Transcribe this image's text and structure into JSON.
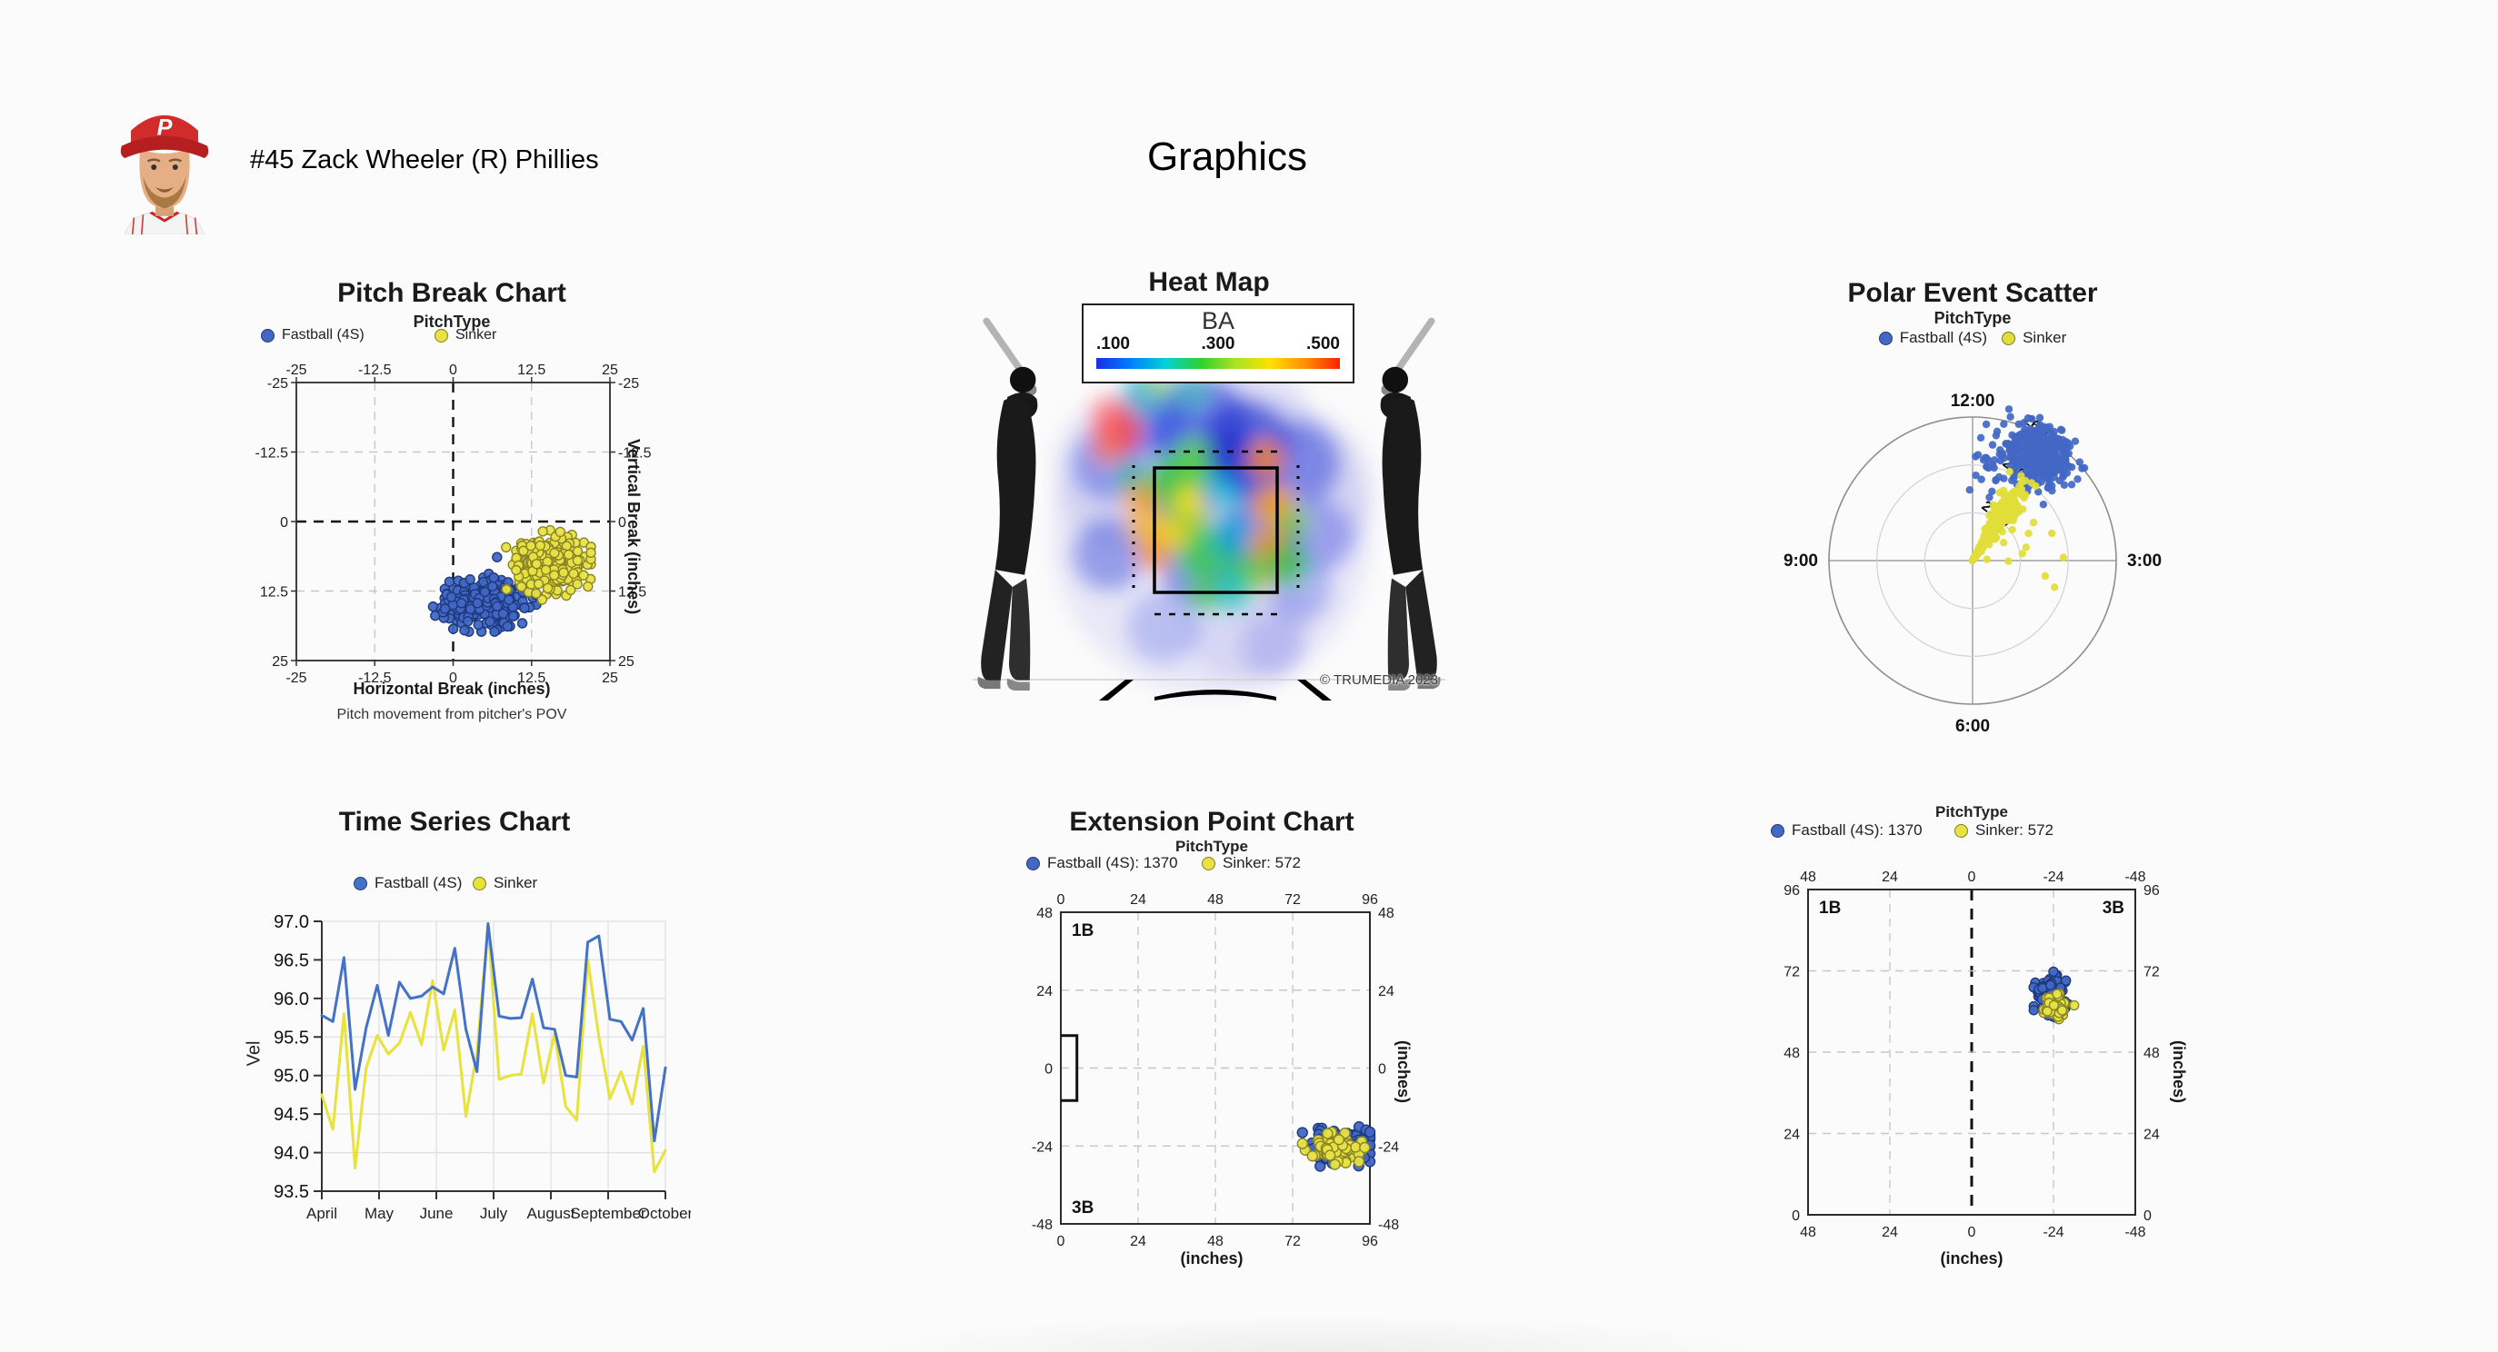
{
  "header": {
    "player_line": "#45 Zack Wheeler (R) Phillies",
    "page_title": "Graphics"
  },
  "colors": {
    "fastball_fill": "#4267c4",
    "fastball_stroke": "#1e3a7e",
    "sinker_fill": "#e8e345",
    "sinker_stroke": "#8a8426"
  },
  "chart_data": [
    {
      "id": "pitch_break",
      "type": "scatter",
      "title": "Pitch Break Chart",
      "legend_title": "PitchType",
      "series": [
        {
          "name": "Fastball (4S)",
          "color": "#4267c4",
          "stroke": "#1e3a7e"
        },
        {
          "name": "Sinker",
          "color": "#e8e345",
          "stroke": "#8a8426"
        }
      ],
      "xlabel": "Horizontal Break (inches)",
      "footnote": "Pitch movement from pitcher's POV",
      "ylabel_right": "Vertical Break (inches)",
      "xlim": [
        -25,
        25
      ],
      "ylim": [
        -25,
        25
      ],
      "xticks": [
        -25,
        -12.5,
        0,
        12.5,
        25
      ],
      "yticks": [
        25,
        12.5,
        0,
        -12.5,
        -25
      ],
      "clusters": [
        {
          "series": 0,
          "cx": 5.2,
          "cy": 14.6,
          "sx": 3.1,
          "sy": 2.0,
          "n": 330
        },
        {
          "series": 1,
          "cx": 15.2,
          "cy": 7.8,
          "sx": 2.6,
          "sy": 2.4,
          "n": 270
        }
      ],
      "extra_points": [
        {
          "series": 0,
          "x": -3.2,
          "y": 15.3
        },
        {
          "series": 0,
          "x": 7.0,
          "y": 6.4
        }
      ]
    },
    {
      "id": "heat_map",
      "type": "heatmap",
      "title": "Heat Map",
      "metric": "BA",
      "scale_labels": [
        ".100",
        ".300",
        ".500"
      ],
      "scale_colors": [
        "#1b2be8",
        "#0080ff",
        "#00d4d0",
        "#2fd02f",
        "#a8e421",
        "#ffe000",
        "#ff9000",
        "#ff2000"
      ],
      "watermark": "© TRUMEDIA 2023"
    },
    {
      "id": "polar",
      "type": "polar_scatter",
      "title": "Polar Event Scatter",
      "legend_title": "PitchType",
      "series": [
        {
          "name": "Fastball (4S)",
          "color": "#4267c4"
        },
        {
          "name": "Sinker",
          "color": "#e2dd3a"
        }
      ],
      "clock_labels": {
        "top": "12:00",
        "right": "3:00",
        "bottom": "6:00",
        "left": "9:00"
      },
      "rings": [
        2200,
        2400,
        2600
      ],
      "center_value": 2000,
      "clusters": [
        {
          "series": 0,
          "angle": 33,
          "angle_sd": 7.5,
          "r": 2525,
          "r_sd": 60,
          "n": 430
        },
        {
          "series": 0,
          "angle": 13,
          "angle_sd": 8,
          "r": 2430,
          "r_sd": 85,
          "n": 40
        },
        {
          "series": 1,
          "angle": 33,
          "angle_sd": 5,
          "r": 2200,
          "r_sd": 80,
          "n": 300
        },
        {
          "series": 1,
          "angle": 33,
          "angle_sd": 3,
          "r": 2060,
          "r_sd": 40,
          "n": 70
        }
      ],
      "extra_points": [
        {
          "series": 1,
          "angle": 0,
          "r": 2000
        },
        {
          "series": 1,
          "angle": 52,
          "r": 2210
        },
        {
          "series": 1,
          "angle": 58,
          "r": 2300
        },
        {
          "series": 1,
          "angle": 64,
          "r": 2260
        },
        {
          "series": 1,
          "angle": 71,
          "r": 2350
        },
        {
          "series": 1,
          "angle": 76,
          "r": 2230
        },
        {
          "series": 1,
          "angle": 82,
          "r": 2210
        },
        {
          "series": 1,
          "angle": 88,
          "r": 2380
        },
        {
          "series": 1,
          "angle": 91,
          "r": 2150
        },
        {
          "series": 1,
          "angle": 102,
          "r": 2310
        },
        {
          "series": 1,
          "angle": 108,
          "r": 2360
        },
        {
          "series": 1,
          "angle": 85,
          "r": 2060
        },
        {
          "series": 1,
          "angle": 60,
          "r": 2150
        }
      ]
    },
    {
      "id": "time_series",
      "type": "line",
      "title": "Time Series Chart",
      "ylabel": "Vel",
      "x_tick_labels": [
        "April",
        "May",
        "June",
        "July",
        "August",
        "September",
        "October"
      ],
      "ylim": [
        93.5,
        97.0
      ],
      "yticks": [
        "97.0",
        "96.5",
        "96.0",
        "95.5",
        "95.0",
        "94.5",
        "94.0",
        "93.5"
      ],
      "series": [
        {
          "name": "Fastball (4S)",
          "color": "#4472c8",
          "values": [
            95.78,
            95.7,
            96.53,
            94.82,
            95.62,
            96.17,
            95.52,
            96.21,
            96.0,
            96.03,
            96.15,
            96.06,
            96.65,
            95.6,
            95.05,
            96.97,
            95.77,
            95.74,
            95.75,
            96.25,
            95.62,
            95.6,
            95.0,
            94.98,
            96.73,
            96.81,
            95.73,
            95.7,
            95.46,
            95.87,
            94.15,
            95.1
          ]
        },
        {
          "name": "Sinker",
          "color": "#e8e23c",
          "values": [
            94.75,
            94.3,
            95.8,
            93.8,
            95.1,
            95.52,
            95.28,
            95.42,
            95.82,
            95.4,
            96.23,
            95.33,
            95.85,
            94.47,
            95.3,
            96.95,
            94.95,
            95.0,
            95.02,
            95.8,
            94.9,
            95.55,
            94.6,
            94.42,
            96.5,
            95.5,
            94.7,
            95.05,
            94.63,
            95.38,
            93.75,
            94.03
          ]
        }
      ]
    },
    {
      "id": "extension",
      "type": "scatter",
      "title": "Extension Point Chart",
      "legend_title": "PitchType",
      "series": [
        {
          "name": "Fastball (4S): 1370",
          "color": "#4267c4",
          "stroke": "#1e3a7e"
        },
        {
          "name": "Sinker: 572",
          "color": "#e8e345",
          "stroke": "#8a8426"
        }
      ],
      "xlabel": "(inches)",
      "ylabel_right": "(inches)",
      "xlim": [
        0,
        96
      ],
      "ylim": [
        48,
        -48
      ],
      "xticks": [
        0,
        24,
        48,
        72,
        96
      ],
      "yticks": [
        48,
        24,
        0,
        -24,
        -48
      ],
      "corner_labels": [
        {
          "pos": "top_left",
          "text": "1B"
        },
        {
          "pos": "bottom_left",
          "text": "3B"
        }
      ],
      "clusters": [
        {
          "series": 0,
          "cx": 87,
          "cy": -24,
          "sx": 4.6,
          "sy": 2.4,
          "n": 150
        },
        {
          "series": 1,
          "cx": 85.5,
          "cy": -25,
          "sx": 4.2,
          "sy": 2.3,
          "n": 60
        }
      ]
    },
    {
      "id": "release",
      "type": "scatter",
      "legend_title": "PitchType",
      "series": [
        {
          "name": "Fastball (4S): 1370",
          "color": "#4267c4",
          "stroke": "#1e3a7e"
        },
        {
          "name": "Sinker: 572",
          "color": "#e8e345",
          "stroke": "#8a8426"
        }
      ],
      "xlabel": "(inches)",
      "ylabel_right": "(inches)",
      "xlim": [
        48,
        -48
      ],
      "ylim": [
        96,
        0
      ],
      "xticks": [
        48,
        24,
        0,
        -24,
        -48
      ],
      "yticks": [
        96,
        72,
        48,
        24,
        0
      ],
      "corner_labels": [
        {
          "pos": "top_left",
          "text": "1B"
        },
        {
          "pos": "top_right",
          "text": "3B"
        }
      ],
      "clusters": [
        {
          "series": 0,
          "cx": -23.6,
          "cy": 65,
          "sx": 2.1,
          "sy": 2.6,
          "n": 150
        },
        {
          "series": 1,
          "cx": -24.6,
          "cy": 61.5,
          "sx": 2.1,
          "sy": 2.2,
          "n": 60
        }
      ]
    }
  ]
}
